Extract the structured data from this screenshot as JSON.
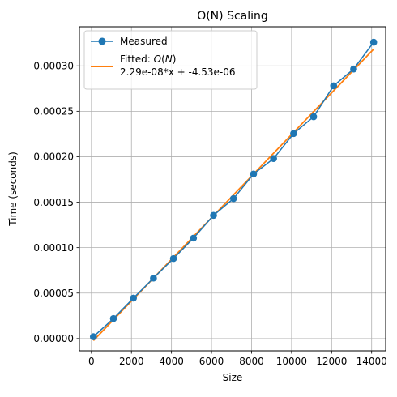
{
  "chart_data": {
    "type": "line",
    "title": "O(N) Scaling",
    "xlabel": "Size",
    "ylabel": "Time (seconds)",
    "xlim": [
      -600,
      14700
    ],
    "ylim": [
      -1.35e-05,
      0.000343
    ],
    "xticks": [
      0,
      2000,
      4000,
      6000,
      8000,
      10000,
      12000,
      14000
    ],
    "yticks": [
      0.0,
      5e-05,
      0.0001,
      0.00015,
      0.0002,
      0.00025,
      0.0003
    ],
    "xtick_labels": [
      "0",
      "2000",
      "4000",
      "6000",
      "8000",
      "10000",
      "12000",
      "14000"
    ],
    "ytick_labels": [
      "0.00000",
      "0.00005",
      "0.00010",
      "0.00015",
      "0.00020",
      "0.00025",
      "0.00030"
    ],
    "grid": true,
    "legend_position": "top-left",
    "series": [
      {
        "name": "Measured",
        "color": "#1f77b4",
        "marker": "circle",
        "x": [
          100,
          1100,
          2100,
          3100,
          4100,
          5100,
          6100,
          7100,
          8100,
          9100,
          10100,
          11100,
          12100,
          13100,
          14100
        ],
        "y": [
          2e-06,
          2.2e-05,
          4.45e-05,
          6.65e-05,
          8.8e-05,
          0.0001105,
          0.0001355,
          0.000154,
          0.000181,
          0.000198,
          0.0002255,
          0.000244,
          0.000278,
          0.0002965,
          0.000326
        ]
      },
      {
        "name": "Fitted: O(N)",
        "name_line2": "2.29e-08*x + -4.53e-06",
        "color": "#ff7f0e",
        "marker": "none",
        "slope": 2.29e-08,
        "intercept": -4.53e-06,
        "x": [
          100,
          14100
        ]
      }
    ]
  }
}
